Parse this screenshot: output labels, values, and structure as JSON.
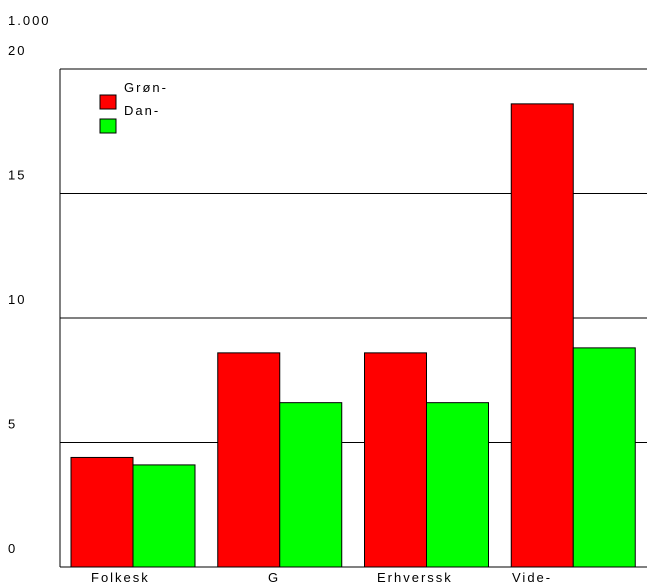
{
  "chart_data": {
    "type": "bar",
    "unit_label": "1.000",
    "categories": [
      "Folkesk",
      "G",
      "Erhverssk",
      "Vide-"
    ],
    "series": [
      {
        "name": "Grøn-",
        "color": "#ff0000",
        "values": [
          4.4,
          8.6,
          8.6,
          18.6
        ]
      },
      {
        "name": "Dan-",
        "color": "#00ff00",
        "values": [
          4.1,
          6.6,
          6.6,
          8.8
        ]
      }
    ],
    "ylim": [
      0,
      20
    ],
    "yticks": [
      "0",
      "5",
      "10",
      "15",
      "20"
    ],
    "grid": true,
    "legend_position": "top-left"
  }
}
